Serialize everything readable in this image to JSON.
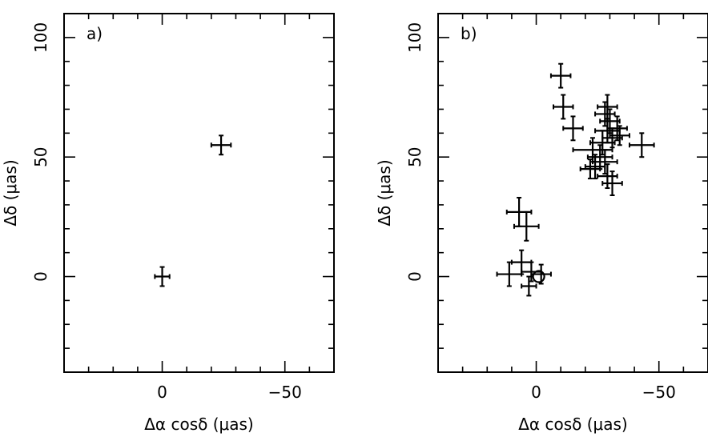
{
  "chart_data": [
    {
      "type": "scatter",
      "panel_label": "a)",
      "xlabel": "Δα cosδ  (μas)",
      "ylabel": "Δδ  (μas)",
      "xlim": [
        40,
        -70
      ],
      "ylim": [
        -40,
        110
      ],
      "xticks": [
        0,
        -50
      ],
      "yticks": [
        0,
        50,
        100
      ],
      "xtick_labels": [
        "0",
        "−50"
      ],
      "ytick_labels": [
        "0",
        "50",
        "100"
      ],
      "points": [
        {
          "x": 0,
          "y": 0,
          "xerr": 3,
          "yerr": 4
        },
        {
          "x": -24,
          "y": 55,
          "xerr": 4,
          "yerr": 4
        }
      ]
    },
    {
      "type": "scatter",
      "panel_label": "b)",
      "xlabel": "Δα cosδ  (μas)",
      "ylabel": "Δδ  (μas)",
      "xlim": [
        40,
        -70
      ],
      "ylim": [
        -40,
        110
      ],
      "xticks": [
        0,
        -50
      ],
      "yticks": [
        0,
        50,
        100
      ],
      "xtick_labels": [
        "0",
        "−50"
      ],
      "ytick_labels": [
        "0",
        "50",
        "100"
      ],
      "reference_circle": {
        "x": -1,
        "y": 0
      },
      "points": [
        {
          "x": 11,
          "y": 1,
          "xerr": 5,
          "yerr": 5
        },
        {
          "x": 6,
          "y": 6,
          "xerr": 4,
          "yerr": 5
        },
        {
          "x": 2,
          "y": 2,
          "xerr": 4,
          "yerr": 4
        },
        {
          "x": 3,
          "y": -4,
          "xerr": 3,
          "yerr": 4
        },
        {
          "x": -2,
          "y": 1,
          "xerr": 4,
          "yerr": 4
        },
        {
          "x": 7,
          "y": 27,
          "xerr": 5,
          "yerr": 6
        },
        {
          "x": 4,
          "y": 21,
          "xerr": 5,
          "yerr": 6
        },
        {
          "x": -10,
          "y": 84,
          "xerr": 4,
          "yerr": 5
        },
        {
          "x": -11,
          "y": 71,
          "xerr": 4,
          "yerr": 5
        },
        {
          "x": -15,
          "y": 62,
          "xerr": 4,
          "yerr": 5
        },
        {
          "x": -29,
          "y": 71,
          "xerr": 4,
          "yerr": 5
        },
        {
          "x": -28,
          "y": 68,
          "xerr": 4,
          "yerr": 5
        },
        {
          "x": -30,
          "y": 65,
          "xerr": 4,
          "yerr": 5
        },
        {
          "x": -29,
          "y": 61,
          "xerr": 5,
          "yerr": 5
        },
        {
          "x": -33,
          "y": 62,
          "xerr": 4,
          "yerr": 5
        },
        {
          "x": -34,
          "y": 59,
          "xerr": 4,
          "yerr": 4
        },
        {
          "x": -31,
          "y": 58,
          "xerr": 4,
          "yerr": 4
        },
        {
          "x": -23,
          "y": 53,
          "xerr": 8,
          "yerr": 5
        },
        {
          "x": -27,
          "y": 56,
          "xerr": 5,
          "yerr": 5
        },
        {
          "x": -26,
          "y": 50,
          "xerr": 5,
          "yerr": 5
        },
        {
          "x": -28,
          "y": 48,
          "xerr": 5,
          "yerr": 5
        },
        {
          "x": -24,
          "y": 46,
          "xerr": 4,
          "yerr": 5
        },
        {
          "x": -22,
          "y": 45,
          "xerr": 4,
          "yerr": 4
        },
        {
          "x": -29,
          "y": 42,
          "xerr": 4,
          "yerr": 5
        },
        {
          "x": -31,
          "y": 39,
          "xerr": 4,
          "yerr": 5
        },
        {
          "x": -43,
          "y": 55,
          "xerr": 5,
          "yerr": 5
        }
      ]
    }
  ]
}
